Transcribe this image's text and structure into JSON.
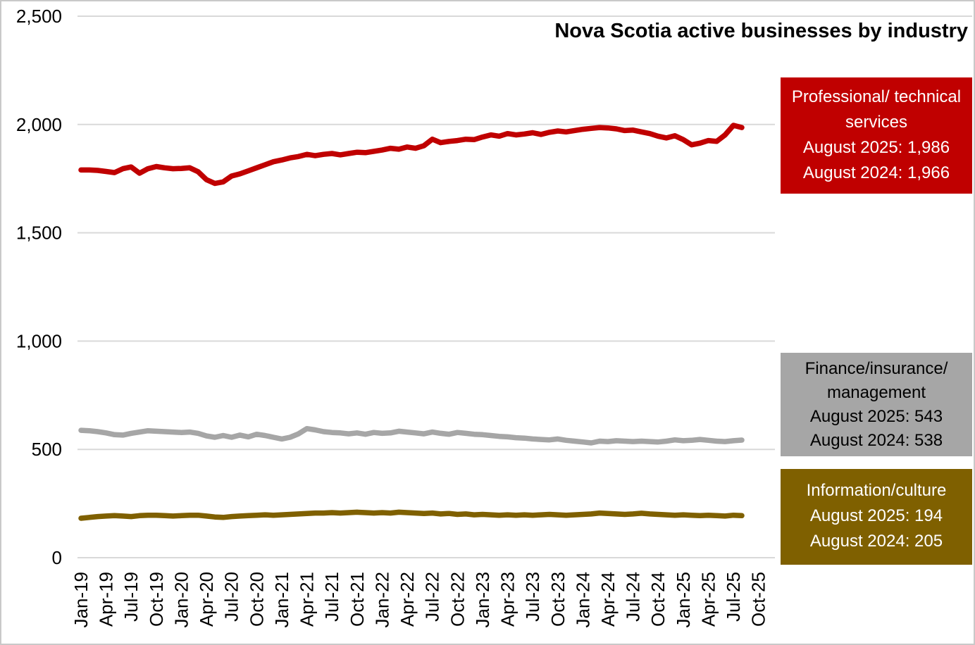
{
  "title": "Nova Scotia active businesses by industry",
  "chart_data": {
    "type": "line",
    "title": "Nova Scotia active businesses by industry",
    "x_unit": "month",
    "xlabel": "",
    "ylabel": "",
    "ylim": [
      0,
      2500
    ],
    "grid": "horizontal",
    "y_ticks": [
      0,
      500,
      1000,
      1500,
      2000,
      2500
    ],
    "y_tick_labels": [
      "0",
      "500",
      "1,000",
      "1,500",
      "2,000",
      "2,500"
    ],
    "x_axis_tick_labels": [
      "Jan-19",
      "Apr-19",
      "Jul-19",
      "Oct-19",
      "Jan-20",
      "Apr-20",
      "Jul-20",
      "Oct-20",
      "Jan-21",
      "Apr-21",
      "Jul-21",
      "Oct-21",
      "Jan-22",
      "Apr-22",
      "Jul-22",
      "Oct-22",
      "Jan-23",
      "Apr-23",
      "Jul-23",
      "Oct-23",
      "Jan-24",
      "Apr-24",
      "Jul-24",
      "Oct-24",
      "Jan-25",
      "Apr-25",
      "Jul-25",
      "Oct-25"
    ],
    "months": [
      "Jan-19",
      "Feb-19",
      "Mar-19",
      "Apr-19",
      "May-19",
      "Jun-19",
      "Jul-19",
      "Aug-19",
      "Sep-19",
      "Oct-19",
      "Nov-19",
      "Dec-19",
      "Jan-20",
      "Feb-20",
      "Mar-20",
      "Apr-20",
      "May-20",
      "Jun-20",
      "Jul-20",
      "Aug-20",
      "Sep-20",
      "Oct-20",
      "Nov-20",
      "Dec-20",
      "Jan-21",
      "Feb-21",
      "Mar-21",
      "Apr-21",
      "May-21",
      "Jun-21",
      "Jul-21",
      "Aug-21",
      "Sep-21",
      "Oct-21",
      "Nov-21",
      "Dec-21",
      "Jan-22",
      "Feb-22",
      "Mar-22",
      "Apr-22",
      "May-22",
      "Jun-22",
      "Jul-22",
      "Aug-22",
      "Sep-22",
      "Oct-22",
      "Nov-22",
      "Dec-22",
      "Jan-23",
      "Feb-23",
      "Mar-23",
      "Apr-23",
      "May-23",
      "Jun-23",
      "Jul-23",
      "Aug-23",
      "Sep-23",
      "Oct-23",
      "Nov-23",
      "Dec-23",
      "Jan-24",
      "Feb-24",
      "Mar-24",
      "Apr-24",
      "May-24",
      "Jun-24",
      "Jul-24",
      "Aug-24",
      "Sep-24",
      "Oct-24",
      "Nov-24",
      "Dec-24",
      "Jan-25",
      "Feb-25",
      "Mar-25",
      "Apr-25",
      "May-25",
      "Jun-25",
      "Jul-25",
      "Aug-25"
    ],
    "series": [
      {
        "name": "Professional/technical services",
        "color": "#C00000",
        "aug_2025": 1986,
        "aug_2024": 1966,
        "values": [
          1790,
          1790,
          1788,
          1783,
          1778,
          1796,
          1804,
          1775,
          1796,
          1806,
          1800,
          1796,
          1797,
          1800,
          1782,
          1745,
          1728,
          1735,
          1762,
          1772,
          1786,
          1800,
          1814,
          1828,
          1836,
          1846,
          1852,
          1862,
          1856,
          1862,
          1866,
          1860,
          1866,
          1872,
          1870,
          1876,
          1882,
          1890,
          1886,
          1896,
          1890,
          1902,
          1932,
          1916,
          1922,
          1926,
          1932,
          1930,
          1942,
          1952,
          1946,
          1958,
          1952,
          1956,
          1962,
          1954,
          1964,
          1970,
          1966,
          1972,
          1978,
          1982,
          1986,
          1984,
          1980,
          1972,
          1974,
          1966,
          1958,
          1946,
          1938,
          1948,
          1930,
          1906,
          1914,
          1926,
          1922,
          1952,
          1996,
          1986
        ]
      },
      {
        "name": "Finance/insurance/management",
        "color": "#A6A6A6",
        "aug_2025": 543,
        "aug_2024": 538,
        "values": [
          588,
          586,
          582,
          576,
          568,
          566,
          574,
          580,
          586,
          584,
          582,
          580,
          578,
          580,
          574,
          562,
          556,
          564,
          556,
          566,
          558,
          570,
          564,
          556,
          548,
          556,
          572,
          596,
          590,
          582,
          578,
          576,
          572,
          576,
          570,
          578,
          574,
          576,
          584,
          580,
          576,
          572,
          580,
          574,
          570,
          578,
          574,
          570,
          568,
          564,
          560,
          558,
          554,
          552,
          548,
          546,
          544,
          548,
          542,
          538,
          534,
          530,
          538,
          536,
          540,
          538,
          536,
          538,
          536,
          534,
          538,
          544,
          540,
          542,
          546,
          542,
          538,
          536,
          540,
          543
        ]
      },
      {
        "name": "Information/culture",
        "color": "#7F6000",
        "aug_2025": 194,
        "aug_2024": 205,
        "values": [
          182,
          186,
          190,
          192,
          194,
          192,
          190,
          194,
          196,
          196,
          194,
          192,
          194,
          196,
          196,
          192,
          188,
          186,
          190,
          192,
          194,
          196,
          198,
          196,
          198,
          200,
          202,
          204,
          206,
          206,
          208,
          206,
          208,
          210,
          208,
          206,
          208,
          206,
          210,
          208,
          206,
          204,
          206,
          202,
          204,
          200,
          202,
          198,
          200,
          198,
          196,
          198,
          196,
          198,
          196,
          198,
          200,
          198,
          196,
          198,
          200,
          202,
          206,
          204,
          202,
          200,
          202,
          205,
          202,
          200,
          198,
          196,
          198,
          196,
          194,
          196,
          194,
          192,
          196,
          194
        ]
      }
    ]
  },
  "legend_boxes": [
    {
      "id": "professional",
      "bg": "#C00000",
      "fg": "#FFFFFF",
      "lines": [
        "Professional/ technical",
        "services",
        "August 2025: 1,986",
        "August 2024: 1,966"
      ]
    },
    {
      "id": "finance",
      "bg": "#A6A6A6",
      "fg": "#000000",
      "lines": [
        "Finance/insurance/",
        "management",
        "August 2025: 543",
        "August 2024: 538"
      ]
    },
    {
      "id": "information",
      "bg": "#7F6000",
      "fg": "#FFFFFF",
      "lines": [
        "Information/culture",
        "August 2025: 194",
        "August 2024: 205"
      ]
    }
  ],
  "colors": {
    "background": "#FFFFFF",
    "gridline": "#D9D9D9",
    "axis_text": "#000000",
    "frame_border": "#C9C9C9"
  }
}
